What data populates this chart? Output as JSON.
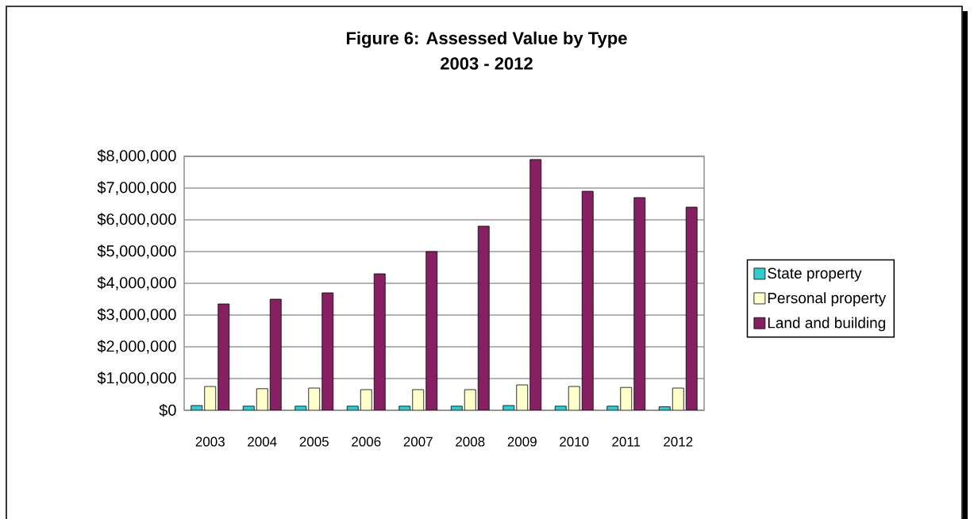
{
  "chart_data": {
    "type": "bar",
    "title": "Figure 6: Assessed Value by Type",
    "subtitle": "2003 - 2012",
    "categories": [
      "2003",
      "2004",
      "2005",
      "2006",
      "2007",
      "2008",
      "2009",
      "2010",
      "2011",
      "2012"
    ],
    "series": [
      {
        "name": "State property",
        "color": "#33cccc",
        "values": [
          150000,
          130000,
          130000,
          130000,
          130000,
          130000,
          150000,
          130000,
          130000,
          110000
        ]
      },
      {
        "name": "Personal property",
        "color": "#ffffcc",
        "values": [
          750000,
          680000,
          700000,
          650000,
          650000,
          650000,
          800000,
          750000,
          720000,
          700000
        ]
      },
      {
        "name": "Land and building",
        "color": "#862062",
        "values": [
          3350000,
          3500000,
          3700000,
          4300000,
          5000000,
          5800000,
          7900000,
          6900000,
          6700000,
          6400000
        ]
      }
    ],
    "ylim": [
      0,
      8000000
    ],
    "yticks": [
      {
        "value": 0,
        "label": "$0"
      },
      {
        "value": 1000000,
        "label": "$1,000,000"
      },
      {
        "value": 2000000,
        "label": "$2,000,000"
      },
      {
        "value": 3000000,
        "label": "$3,000,000"
      },
      {
        "value": 4000000,
        "label": "$4,000,000"
      },
      {
        "value": 5000000,
        "label": "$5,000,000"
      },
      {
        "value": 6000000,
        "label": "$6,000,000"
      },
      {
        "value": 7000000,
        "label": "$7,000,000"
      },
      {
        "value": 8000000,
        "label": "$8,000,000"
      }
    ],
    "grid": "y",
    "legend": "right"
  }
}
